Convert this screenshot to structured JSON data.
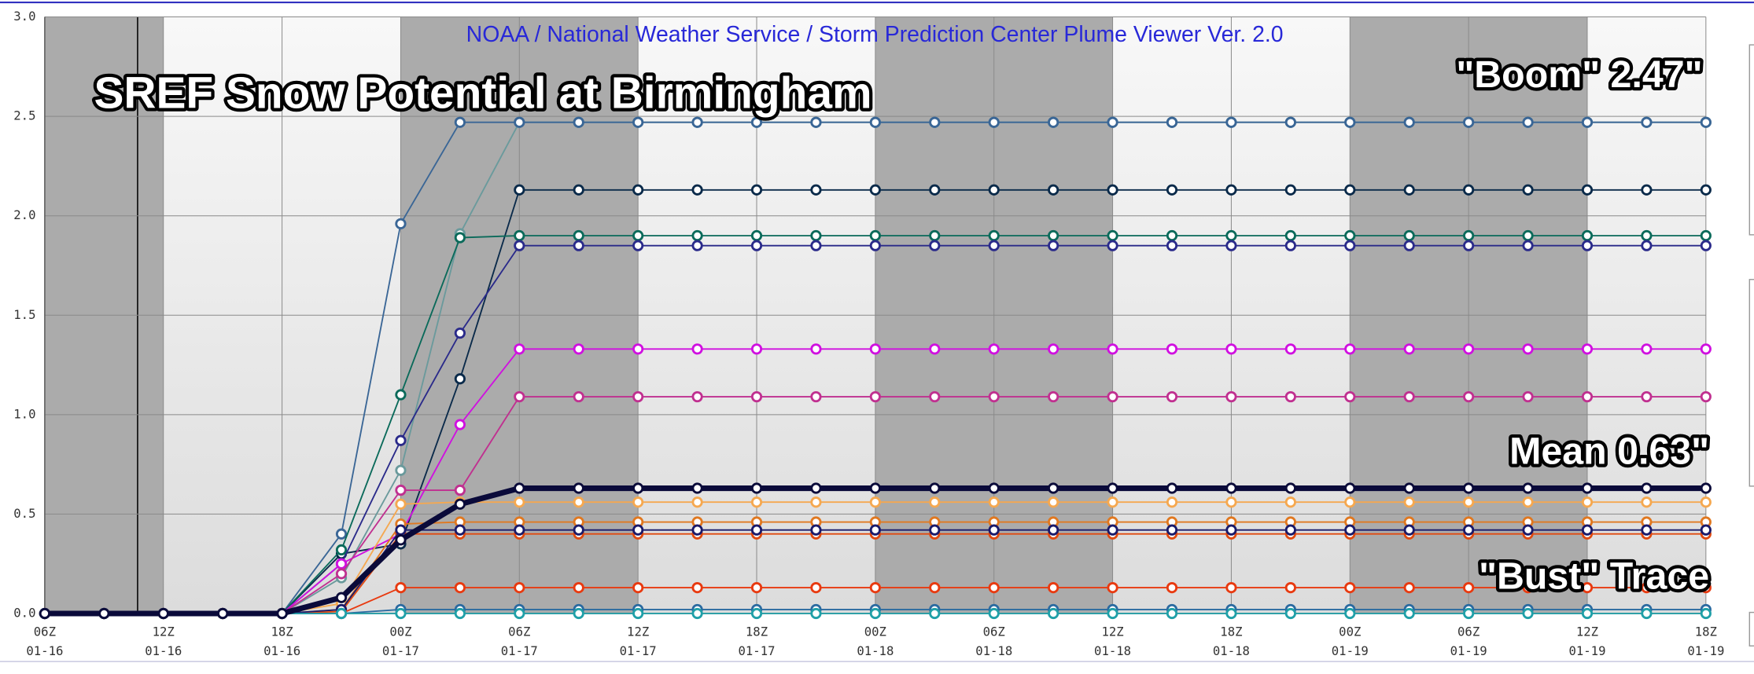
{
  "chart_data": {
    "type": "line",
    "title": "NOAA / National Weather Service / Storm Prediction Center Plume Viewer Ver. 2.0",
    "annotations": [
      "SREF Snow Potential at Birmingham",
      "\"Boom\" 2.47\"",
      "Mean 0.63\"",
      "\"Bust\" Trace"
    ],
    "categories": [
      "06Z",
      null,
      "12Z",
      null,
      "18Z",
      null,
      "00Z",
      null,
      "06Z",
      null,
      "12Z",
      null,
      "18Z",
      null,
      "00Z",
      null,
      "06Z",
      null,
      "12Z",
      null,
      "18Z",
      null,
      "00Z",
      null,
      "06Z",
      null,
      "12Z",
      null,
      "18Z"
    ],
    "category_dates": [
      "01-16",
      null,
      "01-16",
      null,
      "01-16",
      null,
      "01-17",
      null,
      "01-17",
      null,
      "01-17",
      null,
      "01-17",
      null,
      "01-18",
      null,
      "01-18",
      null,
      "01-18",
      null,
      "01-18",
      null,
      "01-19",
      null,
      "01-19",
      null,
      "01-19",
      null,
      "01-19"
    ],
    "ylim": [
      0,
      3
    ],
    "yticks": [
      {
        "value": 0,
        "label": "0.0"
      },
      0.5,
      {
        "value": 1,
        "label": "1.0"
      },
      1.5,
      {
        "value": 2,
        "label": "2.0"
      },
      2.5,
      {
        "value": 3,
        "label": "3.0"
      }
    ],
    "grid": true,
    "series": [
      {
        "color": "#6a9a9c",
        "values": [
          0,
          0,
          0,
          0,
          0,
          0.18,
          0.72,
          1.91,
          2.47,
          2.47,
          2.47,
          2.47,
          2.47,
          2.47,
          2.47,
          2.47,
          2.47,
          2.47,
          2.47,
          2.47,
          2.47,
          2.47,
          2.47,
          2.47,
          2.47,
          2.47,
          2.47,
          2.47,
          2.47
        ]
      },
      {
        "color": "#3a6696",
        "values": [
          0,
          0,
          0,
          0,
          0,
          0.4,
          1.96,
          2.47,
          2.47,
          2.47,
          2.47,
          2.47,
          2.47,
          2.47,
          2.47,
          2.47,
          2.47,
          2.47,
          2.47,
          2.47,
          2.47,
          2.47,
          2.47,
          2.47,
          2.47,
          2.47,
          2.47,
          2.47,
          2.47
        ]
      },
      {
        "color": "#0a2a4a",
        "values": [
          0,
          0,
          0,
          0,
          0,
          0.3,
          0.35,
          1.18,
          2.13,
          2.13,
          2.13,
          2.13,
          2.13,
          2.13,
          2.13,
          2.13,
          2.13,
          2.13,
          2.13,
          2.13,
          2.13,
          2.13,
          2.13,
          2.13,
          2.13,
          2.13,
          2.13,
          2.13,
          2.13
        ]
      },
      {
        "color": "#0a6a5a",
        "values": [
          0,
          0,
          0,
          0,
          0,
          0.32,
          1.1,
          1.89,
          1.9,
          1.9,
          1.9,
          1.9,
          1.9,
          1.9,
          1.9,
          1.9,
          1.9,
          1.9,
          1.9,
          1.9,
          1.9,
          1.9,
          1.9,
          1.9,
          1.9,
          1.9,
          1.9,
          1.9,
          1.9
        ]
      },
      {
        "color": "#2a2a8a",
        "values": [
          0,
          0,
          0,
          0,
          0,
          0.25,
          0.87,
          1.41,
          1.85,
          1.85,
          1.85,
          1.85,
          1.85,
          1.85,
          1.85,
          1.85,
          1.85,
          1.85,
          1.85,
          1.85,
          1.85,
          1.85,
          1.85,
          1.85,
          1.85,
          1.85,
          1.85,
          1.85,
          1.85
        ]
      },
      {
        "color": "#d010e0",
        "values": [
          0,
          0,
          0,
          0,
          0,
          0.25,
          0.4,
          0.95,
          1.33,
          1.33,
          1.33,
          1.33,
          1.33,
          1.33,
          1.33,
          1.33,
          1.33,
          1.33,
          1.33,
          1.33,
          1.33,
          1.33,
          1.33,
          1.33,
          1.33,
          1.33,
          1.33,
          1.33,
          1.33
        ]
      },
      {
        "color": "#c03090",
        "values": [
          0,
          0,
          0,
          0,
          0,
          0.2,
          0.62,
          0.62,
          1.09,
          1.09,
          1.09,
          1.09,
          1.09,
          1.09,
          1.09,
          1.09,
          1.09,
          1.09,
          1.09,
          1.09,
          1.09,
          1.09,
          1.09,
          1.09,
          1.09,
          1.09,
          1.09,
          1.09,
          1.09
        ]
      },
      {
        "color": "#f5a850",
        "values": [
          0,
          0,
          0,
          0,
          0,
          0.05,
          0.55,
          0.56,
          0.56,
          0.56,
          0.56,
          0.56,
          0.56,
          0.56,
          0.56,
          0.56,
          0.56,
          0.56,
          0.56,
          0.56,
          0.56,
          0.56,
          0.56,
          0.56,
          0.56,
          0.56,
          0.56,
          0.56,
          0.56
        ]
      },
      {
        "color": "#e07820",
        "values": [
          0,
          0,
          0,
          0,
          0,
          0.02,
          0.45,
          0.46,
          0.46,
          0.46,
          0.46,
          0.46,
          0.46,
          0.46,
          0.46,
          0.46,
          0.46,
          0.46,
          0.46,
          0.46,
          0.46,
          0.46,
          0.46,
          0.46,
          0.46,
          0.46,
          0.46,
          0.46,
          0.46
        ]
      },
      {
        "color": "#e04a10",
        "values": [
          0,
          0,
          0,
          0,
          0,
          0.01,
          0.4,
          0.4,
          0.4,
          0.4,
          0.4,
          0.4,
          0.4,
          0.4,
          0.4,
          0.4,
          0.4,
          0.4,
          0.4,
          0.4,
          0.4,
          0.4,
          0.4,
          0.4,
          0.4,
          0.4,
          0.4,
          0.4,
          0.4
        ]
      },
      {
        "color": "#1a1a6a",
        "values": [
          0,
          0,
          0,
          0,
          0,
          0.02,
          0.42,
          0.42,
          0.42,
          0.42,
          0.42,
          0.42,
          0.42,
          0.42,
          0.42,
          0.42,
          0.42,
          0.42,
          0.42,
          0.42,
          0.42,
          0.42,
          0.42,
          0.42,
          0.42,
          0.42,
          0.42,
          0.42,
          0.42
        ]
      },
      {
        "color": "#e83a10",
        "values": [
          0,
          0,
          0,
          0,
          0,
          0,
          0.13,
          0.13,
          0.13,
          0.13,
          0.13,
          0.13,
          0.13,
          0.13,
          0.13,
          0.13,
          0.13,
          0.13,
          0.13,
          0.13,
          0.13,
          0.13,
          0.13,
          0.13,
          0.13,
          0.13,
          0.13,
          0.13,
          0.13
        ]
      },
      {
        "color": "#2a6aa0",
        "values": [
          0,
          0,
          0,
          0,
          0,
          0,
          0.02,
          0.02,
          0.02,
          0.02,
          0.02,
          0.02,
          0.02,
          0.02,
          0.02,
          0.02,
          0.02,
          0.02,
          0.02,
          0.02,
          0.02,
          0.02,
          0.02,
          0.02,
          0.02,
          0.02,
          0.02,
          0.02,
          0.02
        ]
      },
      {
        "color": "#20a0a8",
        "values": [
          0,
          0,
          0,
          0,
          0,
          0,
          0,
          0,
          0,
          0,
          0,
          0,
          0,
          0,
          0,
          0,
          0,
          0,
          0,
          0,
          0,
          0,
          0,
          0,
          0,
          0,
          0,
          0,
          0
        ]
      },
      {
        "color": "#0a0a3a",
        "width": 5,
        "values": [
          0,
          0,
          0,
          0,
          0,
          0.08,
          0.37,
          0.55,
          0.63,
          0.63,
          0.63,
          0.63,
          0.63,
          0.63,
          0.63,
          0.63,
          0.63,
          0.63,
          0.63,
          0.63,
          0.63,
          0.63,
          0.63,
          0.63,
          0.63,
          0.63,
          0.63,
          0.63,
          0.63
        ]
      }
    ]
  }
}
